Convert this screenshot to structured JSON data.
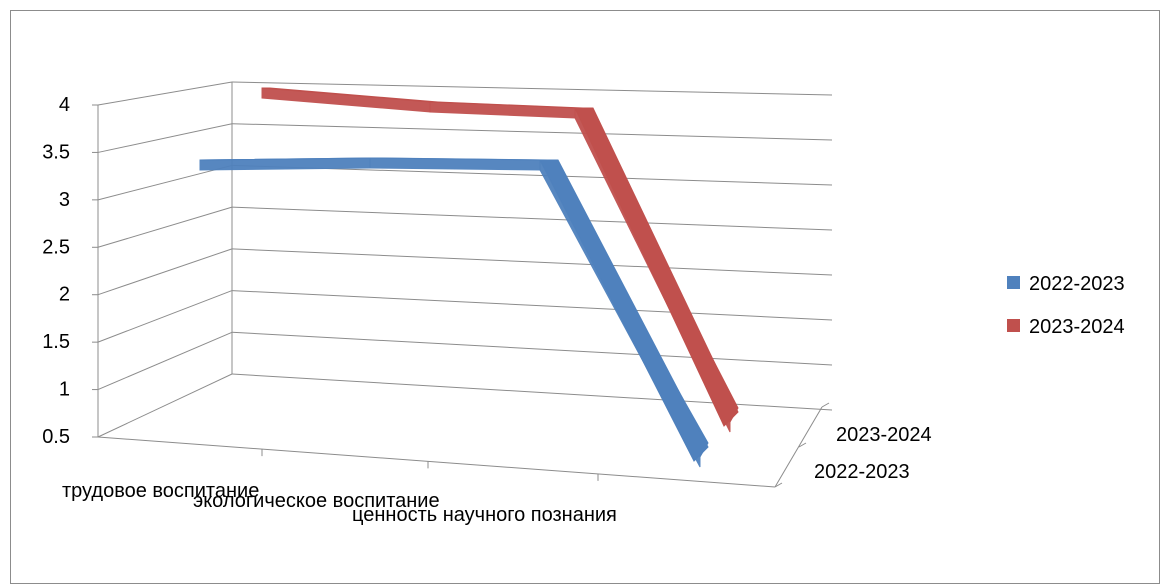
{
  "chart_data": {
    "type": "line",
    "subtype": "3d-line",
    "categories": [
      "трудовое воспитание",
      "экологическое воспитание",
      "ценность научного познания"
    ],
    "series": [
      {
        "name": "2022-2023",
        "values": [
          3.4,
          3.4,
          0.5
        ],
        "color": "#4f81bd"
      },
      {
        "name": "2023-2024",
        "values": [
          4.0,
          3.9,
          0.5
        ],
        "color": "#c0504d"
      }
    ],
    "y_ticks": [
      "0.5",
      "1",
      "1.5",
      "2",
      "2.5",
      "3",
      "3.5",
      "4"
    ],
    "depth_labels": [
      "2023-2024",
      "2022-2023"
    ],
    "ylim": [
      0.5,
      4
    ],
    "grid": true,
    "legend_position": "right"
  }
}
